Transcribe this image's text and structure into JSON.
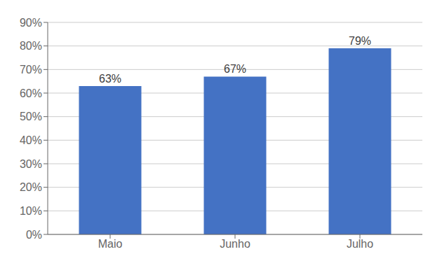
{
  "chart_data": {
    "type": "bar",
    "categories": [
      "Maio",
      "Junho",
      "Julho"
    ],
    "values": [
      0.63,
      0.67,
      0.79
    ],
    "value_labels": [
      "63%",
      "67%",
      "79%"
    ],
    "data_labels": true,
    "color": "#4472C4",
    "ylim": [
      0,
      0.9
    ],
    "yticks": [
      {
        "value": 0.0,
        "label": "0%"
      },
      {
        "value": 0.1,
        "label": "10%"
      },
      {
        "value": 0.2,
        "label": "20%"
      },
      {
        "value": 0.3,
        "label": "30%"
      },
      {
        "value": 0.4,
        "label": "40%"
      },
      {
        "value": 0.5,
        "label": "50%"
      },
      {
        "value": 0.6,
        "label": "60%"
      },
      {
        "value": 0.7,
        "label": "70%"
      },
      {
        "value": 0.8,
        "label": "80%"
      },
      {
        "value": 0.9,
        "label": "90%"
      }
    ],
    "grid": true
  }
}
